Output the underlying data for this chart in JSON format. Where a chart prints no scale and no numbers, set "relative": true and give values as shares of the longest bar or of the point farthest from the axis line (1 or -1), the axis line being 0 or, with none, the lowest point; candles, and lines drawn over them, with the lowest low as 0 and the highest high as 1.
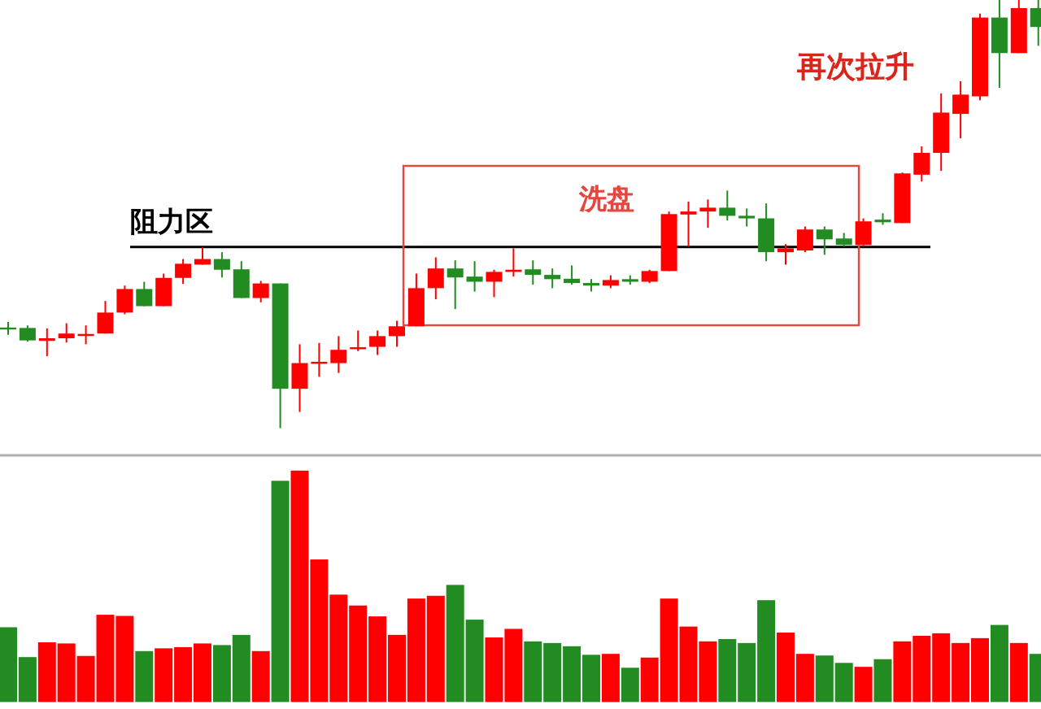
{
  "chart_data": [
    {
      "type": "candlestick",
      "relative": true,
      "categories": [
        null,
        null,
        null,
        null,
        null,
        null,
        null,
        null,
        null,
        null,
        null,
        null,
        null,
        null,
        null,
        null,
        null,
        null,
        null,
        null,
        null,
        null,
        null,
        null,
        null,
        null,
        null,
        null,
        null,
        null,
        null,
        null,
        null,
        null,
        null,
        null,
        null,
        null,
        null,
        null,
        null,
        null,
        null,
        null,
        null,
        null,
        null,
        null,
        null,
        null,
        null,
        null,
        null,
        null
      ],
      "ohlc": [
        [
          0.235,
          0.248,
          0.218,
          0.233
        ],
        [
          0.234,
          0.24,
          0.202,
          0.205
        ],
        [
          0.204,
          0.233,
          0.168,
          0.21
        ],
        [
          0.21,
          0.245,
          0.2,
          0.221
        ],
        [
          0.216,
          0.24,
          0.196,
          0.22
        ],
        [
          0.221,
          0.297,
          0.221,
          0.27
        ],
        [
          0.27,
          0.333,
          0.266,
          0.325
        ],
        [
          0.325,
          0.342,
          0.285,
          0.285
        ],
        [
          0.285,
          0.361,
          0.285,
          0.351
        ],
        [
          0.351,
          0.395,
          0.337,
          0.384
        ],
        [
          0.382,
          0.422,
          0.382,
          0.395
        ],
        [
          0.395,
          0.411,
          0.352,
          0.37
        ],
        [
          0.371,
          0.39,
          0.304,
          0.304
        ],
        [
          0.304,
          0.344,
          0.294,
          0.338
        ],
        [
          0.338,
          0.338,
          0,
          0.092
        ],
        [
          0.092,
          0.196,
          0.038,
          0.152
        ],
        [
          0.153,
          0.199,
          0.12,
          0.155
        ],
        [
          0.152,
          0.215,
          0.129,
          0.183
        ],
        [
          0.185,
          0.228,
          0.18,
          0.189
        ],
        [
          0.19,
          0.228,
          0.171,
          0.215
        ],
        [
          0.215,
          0.251,
          0.19,
          0.238
        ],
        [
          0.238,
          0.361,
          0.238,
          0.327
        ],
        [
          0.327,
          0.399,
          0.301,
          0.373
        ],
        [
          0.373,
          0.392,
          0.278,
          0.352
        ],
        [
          0.354,
          0.39,
          0.319,
          0.342
        ],
        [
          0.342,
          0.37,
          0.306,
          0.365
        ],
        [
          0.365,
          0.42,
          0.354,
          0.37
        ],
        [
          0.371,
          0.392,
          0.335,
          0.358
        ],
        [
          0.358,
          0.373,
          0.327,
          0.348
        ],
        [
          0.349,
          0.38,
          0.335,
          0.339
        ],
        [
          0.339,
          0.348,
          0.319,
          0.333
        ],
        [
          0.333,
          0.357,
          0.327,
          0.346
        ],
        [
          0.348,
          0.357,
          0.335,
          0.342
        ],
        [
          0.342,
          0.37,
          0.339,
          0.367
        ],
        [
          0.367,
          0.506,
          0.367,
          0.5
        ],
        [
          0.499,
          0.529,
          0.424,
          0.506
        ],
        [
          0.506,
          0.534,
          0.468,
          0.515
        ],
        [
          0.515,
          0.555,
          0.485,
          0.496
        ],
        [
          0.496,
          0.513,
          0.471,
          0.49
        ],
        [
          0.49,
          0.525,
          0.39,
          0.411
        ],
        [
          0.411,
          0.43,
          0.382,
          0.42
        ],
        [
          0.415,
          0.471,
          0.411,
          0.464
        ],
        [
          0.464,
          0.471,
          0.405,
          0.441
        ],
        [
          0.443,
          0.456,
          0.424,
          0.428
        ],
        [
          0.428,
          0.49,
          0.424,
          0.483
        ],
        [
          0.487,
          0.502,
          0.475,
          0.481
        ],
        [
          0.479,
          0.597,
          0.479,
          0.595
        ],
        [
          0.592,
          0.658,
          0.576,
          0.643
        ],
        [
          0.643,
          0.782,
          0.601,
          0.737
        ],
        [
          0.734,
          0.81,
          0.677,
          0.779
        ],
        [
          0.775,
          0.968,
          0.766,
          0.959
        ],
        [
          0.959,
          1,
          0.795,
          0.876
        ],
        [
          0.876,
          1,
          0.876,
          0.981
        ],
        [
          0.981,
          1,
          0.893,
          0.937
        ]
      ],
      "colors": [
        "#228b22",
        "#228b22",
        "#ff0000",
        "#ff0000",
        "#ff0000",
        "#ff0000",
        "#ff0000",
        "#228b22",
        "#ff0000",
        "#ff0000",
        "#ff0000",
        "#228b22",
        "#228b22",
        "#ff0000",
        "#228b22",
        "#ff0000",
        "#ff0000",
        "#ff0000",
        "#ff0000",
        "#ff0000",
        "#ff0000",
        "#ff0000",
        "#ff0000",
        "#228b22",
        "#228b22",
        "#ff0000",
        "#ff0000",
        "#228b22",
        "#228b22",
        "#228b22",
        "#228b22",
        "#ff0000",
        "#228b22",
        "#ff0000",
        "#ff0000",
        "#ff0000",
        "#ff0000",
        "#228b22",
        "#228b22",
        "#228b22",
        "#ff0000",
        "#ff0000",
        "#228b22",
        "#228b22",
        "#ff0000",
        "#228b22",
        "#ff0000",
        "#ff0000",
        "#ff0000",
        "#ff0000",
        "#ff0000",
        "#228b22",
        "#ff0000",
        "#228b22"
      ],
      "ref_lines": [
        {
          "axis": "y",
          "value": 0.423,
          "label": "阻力区",
          "color": "#000000"
        }
      ],
      "annotations": [
        "再次拉升",
        "洗盘"
      ]
    },
    {
      "type": "bar",
      "relative": true,
      "categories": [
        null,
        null,
        null,
        null,
        null,
        null,
        null,
        null,
        null,
        null,
        null,
        null,
        null,
        null,
        null,
        null,
        null,
        null,
        null,
        null,
        null,
        null,
        null,
        null,
        null,
        null,
        null,
        null,
        null,
        null,
        null,
        null,
        null,
        null,
        null,
        null,
        null,
        null,
        null,
        null,
        null,
        null,
        null,
        null,
        null,
        null,
        null,
        null,
        null,
        null,
        null,
        null,
        null,
        null
      ],
      "values": [
        0.323,
        0.194,
        0.258,
        0.253,
        0.199,
        0.377,
        0.372,
        0.22,
        0.232,
        0.237,
        0.253,
        0.246,
        0.29,
        0.22,
        0.956,
        1,
        0.616,
        0.464,
        0.417,
        0.37,
        0.29,
        0.447,
        0.459,
        0.506,
        0.356,
        0.279,
        0.316,
        0.262,
        0.255,
        0.241,
        0.204,
        0.208,
        0.148,
        0.192,
        0.447,
        0.326,
        0.262,
        0.272,
        0.255,
        0.44,
        0.3,
        0.208,
        0.201,
        0.169,
        0.152,
        0.185,
        0.262,
        0.286,
        0.297,
        0.255,
        0.276,
        0.333,
        0.255,
        0.208
      ],
      "colors": [
        "#228b22",
        "#228b22",
        "#ff0000",
        "#ff0000",
        "#ff0000",
        "#ff0000",
        "#ff0000",
        "#228b22",
        "#ff0000",
        "#ff0000",
        "#ff0000",
        "#228b22",
        "#228b22",
        "#ff0000",
        "#228b22",
        "#ff0000",
        "#ff0000",
        "#ff0000",
        "#ff0000",
        "#ff0000",
        "#ff0000",
        "#ff0000",
        "#ff0000",
        "#228b22",
        "#228b22",
        "#ff0000",
        "#ff0000",
        "#228b22",
        "#228b22",
        "#228b22",
        "#228b22",
        "#ff0000",
        "#228b22",
        "#ff0000",
        "#ff0000",
        "#ff0000",
        "#ff0000",
        "#228b22",
        "#228b22",
        "#228b22",
        "#ff0000",
        "#ff0000",
        "#228b22",
        "#228b22",
        "#ff0000",
        "#228b22",
        "#ff0000",
        "#ff0000",
        "#ff0000",
        "#ff0000",
        "#ff0000",
        "#228b22",
        "#ff0000",
        "#228b22"
      ]
    }
  ]
}
